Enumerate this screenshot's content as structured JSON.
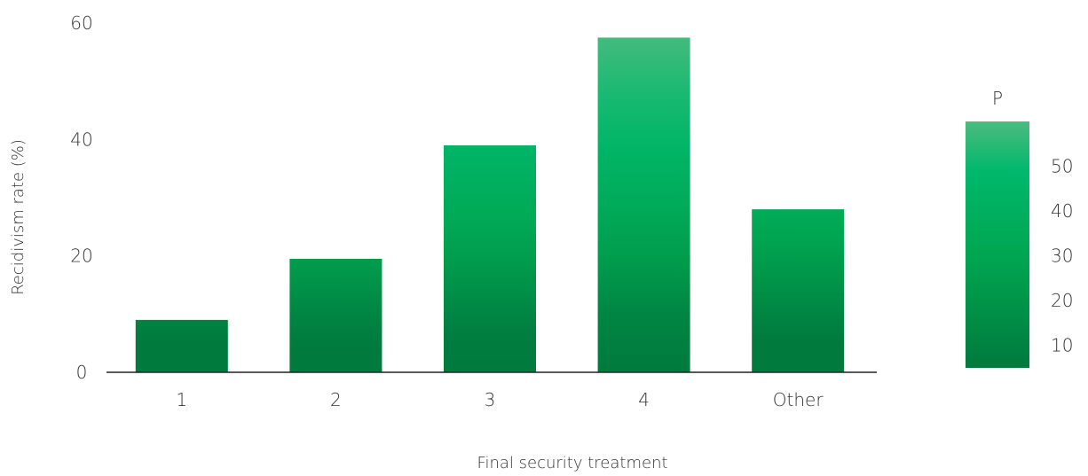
{
  "chart_data": {
    "type": "bar",
    "categories": [
      "1",
      "2",
      "3",
      "4",
      "Other"
    ],
    "values": [
      9,
      19.5,
      39,
      57.5,
      28
    ],
    "xlabel": "Final security treatment",
    "ylabel": "Recidivism rate (%)",
    "ylim": [
      0,
      60
    ],
    "yticks": [
      "0",
      "20",
      "40",
      "60"
    ],
    "colorscale": {
      "title": "P",
      "range": [
        5,
        60
      ],
      "ticks": [
        "10",
        "20",
        "30",
        "40",
        "50"
      ],
      "tick_values": [
        10,
        20,
        30,
        40,
        50
      ],
      "colors": [
        "#007a3d",
        "#00a651",
        "#00b86b",
        "#4dbb80"
      ]
    },
    "legend": "right",
    "grid": false
  }
}
